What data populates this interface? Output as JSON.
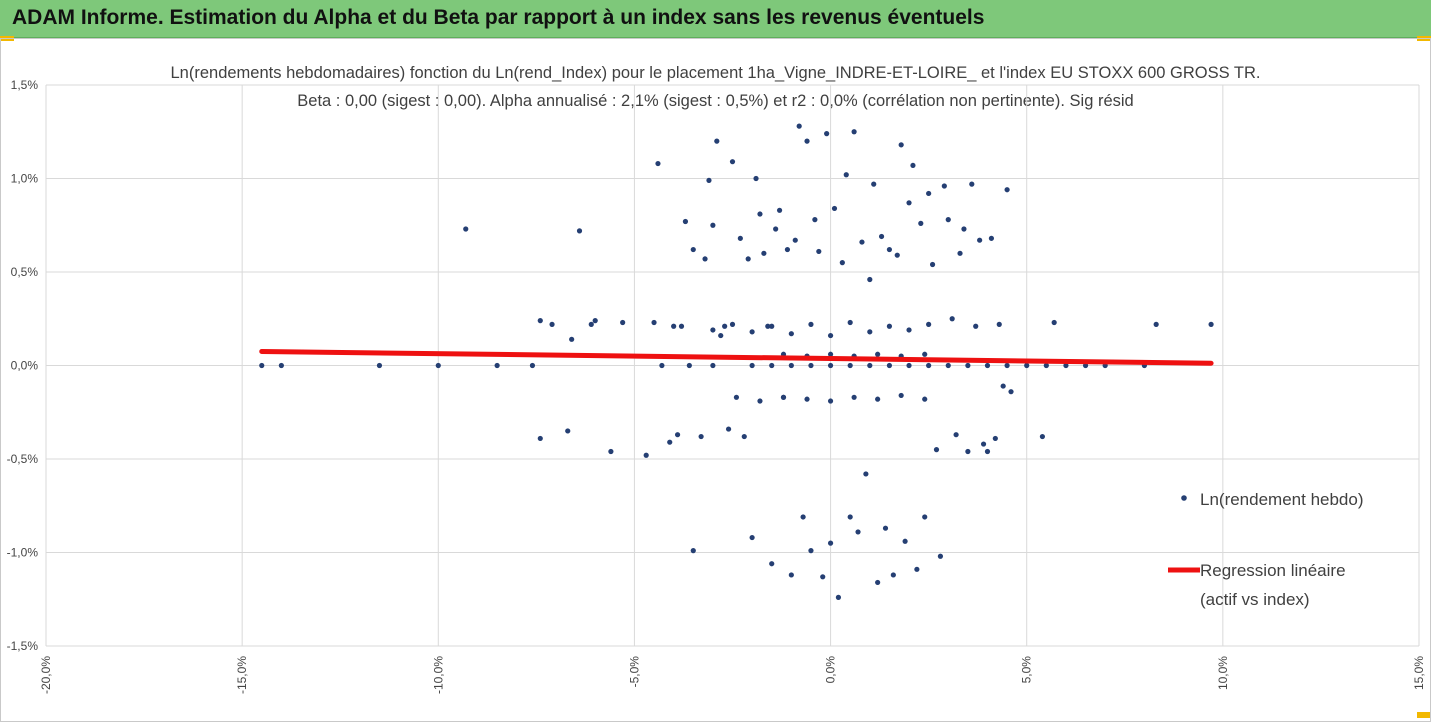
{
  "banner": {
    "title": "ADAM Informe. Estimation du Alpha et du Beta par rapport à un index sans les revenus éventuels"
  },
  "colors": {
    "banner": "#7ec87a",
    "accent_marks": "#f2b800",
    "points": "#253f73",
    "regression": "#ee1111",
    "grid": "#d9d9d9"
  },
  "chart_data": {
    "type": "scatter",
    "title": "Ln(rendements hebdomadaires) fonction du Ln(rend_Index) pour le placement 1ha_Vigne_INDRE-ET-LOIRE_ et l'index EU STOXX 600 GROSS TR.",
    "subtitle": "Beta : 0,00 (sigest : 0,00). Alpha annualisé : 2,1% (sigest : 0,5%) et r2 : 0,0% (corrélation non pertinente). Sig résid",
    "xlim": [
      -0.2,
      0.15
    ],
    "ylim": [
      -0.015,
      0.015
    ],
    "x_ticks": [
      -0.2,
      -0.15,
      -0.1,
      -0.05,
      0,
      0.05,
      0.1,
      0.15
    ],
    "x_tick_labels": [
      "-20,0%",
      "-15,0%",
      "-10,0%",
      "-5,0%",
      "0,0%",
      "5,0%",
      "10,0%",
      "15,0%"
    ],
    "y_ticks": [
      0.015,
      0.01,
      0.005,
      0,
      -0.005,
      -0.01,
      -0.015
    ],
    "y_tick_labels": [
      "1,5%",
      "1,0%",
      "0,5%",
      "0,0%",
      "-0,5%",
      "-1,0%",
      "-1,5%"
    ],
    "grid": true,
    "legend_position": "right",
    "series": [
      {
        "name": "Ln(rendement hebdo)",
        "type": "scatter",
        "color": "#253f73",
        "points": [
          [
            -0.145,
            0.0
          ],
          [
            -0.14,
            0.0
          ],
          [
            -0.115,
            0.0
          ],
          [
            -0.1,
            0.0
          ],
          [
            -0.093,
            0.0073
          ],
          [
            -0.085,
            0.0
          ],
          [
            -0.076,
            0.0
          ],
          [
            -0.074,
            0.0024
          ],
          [
            -0.074,
            -0.0039
          ],
          [
            -0.071,
            0.0022
          ],
          [
            -0.067,
            -0.0035
          ],
          [
            -0.066,
            0.0014
          ],
          [
            -0.064,
            0.0072
          ],
          [
            -0.061,
            0.0022
          ],
          [
            -0.06,
            0.0024
          ],
          [
            -0.056,
            -0.0046
          ],
          [
            -0.053,
            0.0023
          ],
          [
            -0.047,
            -0.0048
          ],
          [
            -0.045,
            0.0023
          ],
          [
            -0.044,
            0.0108
          ],
          [
            -0.043,
            0.0
          ],
          [
            -0.041,
            -0.0041
          ],
          [
            -0.04,
            0.0021
          ],
          [
            -0.039,
            -0.0037
          ],
          [
            -0.038,
            0.0021
          ],
          [
            -0.037,
            0.0077
          ],
          [
            -0.036,
            0.0
          ],
          [
            -0.035,
            -0.0099
          ],
          [
            -0.035,
            0.0062
          ],
          [
            -0.033,
            -0.0038
          ],
          [
            -0.032,
            0.0057
          ],
          [
            -0.031,
            0.0099
          ],
          [
            -0.03,
            0.0075
          ],
          [
            -0.029,
            0.012
          ],
          [
            -0.028,
            0.0016
          ],
          [
            -0.027,
            0.0021
          ],
          [
            -0.026,
            -0.0034
          ],
          [
            -0.025,
            0.0109
          ],
          [
            -0.024,
            -0.0017
          ],
          [
            -0.023,
            0.0068
          ],
          [
            -0.022,
            -0.0038
          ],
          [
            -0.021,
            0.0057
          ],
          [
            -0.02,
            -0.0092
          ],
          [
            -0.019,
            0.01
          ],
          [
            -0.018,
            0.0081
          ],
          [
            -0.017,
            0.006
          ],
          [
            -0.016,
            0.0021
          ],
          [
            -0.015,
            -0.0106
          ],
          [
            -0.014,
            0.0073
          ],
          [
            -0.013,
            0.0083
          ],
          [
            -0.012,
            -0.0017
          ],
          [
            -0.011,
            0.0062
          ],
          [
            -0.01,
            -0.0112
          ],
          [
            -0.009,
            0.0067
          ],
          [
            -0.008,
            0.0128
          ],
          [
            -0.007,
            -0.0081
          ],
          [
            -0.006,
            0.012
          ],
          [
            -0.005,
            -0.0099
          ],
          [
            -0.004,
            0.0078
          ],
          [
            -0.003,
            0.0061
          ],
          [
            -0.002,
            -0.0113
          ],
          [
            -0.001,
            0.0124
          ],
          [
            0.0,
            -0.0095
          ],
          [
            0.001,
            0.0084
          ],
          [
            0.002,
            -0.0124
          ],
          [
            0.003,
            0.0055
          ],
          [
            0.004,
            0.0102
          ],
          [
            0.005,
            -0.0081
          ],
          [
            0.006,
            0.0125
          ],
          [
            0.007,
            -0.0089
          ],
          [
            0.008,
            0.0066
          ],
          [
            0.009,
            -0.0058
          ],
          [
            0.01,
            0.0046
          ],
          [
            0.011,
            0.0097
          ],
          [
            0.012,
            -0.0116
          ],
          [
            0.013,
            0.0069
          ],
          [
            0.014,
            -0.0087
          ],
          [
            0.015,
            0.0062
          ],
          [
            0.016,
            -0.0112
          ],
          [
            0.017,
            0.0059
          ],
          [
            0.018,
            0.0118
          ],
          [
            0.019,
            -0.0094
          ],
          [
            0.02,
            0.0087
          ],
          [
            0.021,
            0.0107
          ],
          [
            0.022,
            -0.0109
          ],
          [
            0.023,
            0.0076
          ],
          [
            0.024,
            -0.0081
          ],
          [
            0.025,
            0.0092
          ],
          [
            0.026,
            0.0054
          ],
          [
            0.027,
            -0.0045
          ],
          [
            0.028,
            -0.0102
          ],
          [
            0.029,
            0.0096
          ],
          [
            0.03,
            0.0078
          ],
          [
            0.031,
            0.0025
          ],
          [
            0.032,
            -0.0037
          ],
          [
            0.033,
            0.006
          ],
          [
            0.034,
            0.0073
          ],
          [
            0.035,
            -0.0046
          ],
          [
            0.036,
            0.0097
          ],
          [
            0.037,
            0.0021
          ],
          [
            0.038,
            0.0067
          ],
          [
            0.039,
            -0.0042
          ],
          [
            0.04,
            -0.0046
          ],
          [
            0.041,
            0.0068
          ],
          [
            0.042,
            -0.0039
          ],
          [
            0.043,
            0.0022
          ],
          [
            0.044,
            -0.0011
          ],
          [
            0.045,
            0.0094
          ],
          [
            0.046,
            -0.0014
          ],
          [
            0.054,
            -0.0038
          ],
          [
            0.057,
            0.0023
          ],
          [
            0.065,
            0.0
          ],
          [
            0.07,
            0.0
          ],
          [
            0.08,
            0.0
          ],
          [
            0.083,
            0.0022
          ],
          [
            0.097,
            0.0022
          ],
          [
            -0.03,
            0.0
          ],
          [
            -0.02,
            0.0
          ],
          [
            -0.015,
            0.0
          ],
          [
            -0.01,
            0.0
          ],
          [
            -0.005,
            0.0
          ],
          [
            0.0,
            0.0
          ],
          [
            0.005,
            0.0
          ],
          [
            0.01,
            0.0
          ],
          [
            0.015,
            0.0
          ],
          [
            0.02,
            0.0
          ],
          [
            0.025,
            0.0
          ],
          [
            0.03,
            0.0
          ],
          [
            0.035,
            0.0
          ],
          [
            0.04,
            0.0
          ],
          [
            0.045,
            0.0
          ],
          [
            0.05,
            0.0
          ],
          [
            0.055,
            0.0
          ],
          [
            0.06,
            0.0
          ],
          [
            -0.03,
            0.0019
          ],
          [
            -0.025,
            0.0022
          ],
          [
            -0.02,
            0.0018
          ],
          [
            -0.015,
            0.0021
          ],
          [
            -0.01,
            0.0017
          ],
          [
            -0.005,
            0.0022
          ],
          [
            0.0,
            0.0016
          ],
          [
            0.005,
            0.0023
          ],
          [
            0.01,
            0.0018
          ],
          [
            0.015,
            0.0021
          ],
          [
            0.02,
            0.0019
          ],
          [
            0.025,
            0.0022
          ],
          [
            -0.018,
            -0.0019
          ],
          [
            -0.012,
            -0.0017
          ],
          [
            -0.006,
            -0.0018
          ],
          [
            0.0,
            -0.0019
          ],
          [
            0.006,
            -0.0017
          ],
          [
            0.012,
            -0.0018
          ],
          [
            0.018,
            -0.0016
          ],
          [
            0.024,
            -0.0018
          ],
          [
            -0.012,
            0.0006
          ],
          [
            -0.006,
            0.0005
          ],
          [
            0.0,
            0.0006
          ],
          [
            0.006,
            0.0005
          ],
          [
            0.012,
            0.0006
          ],
          [
            0.018,
            0.0005
          ],
          [
            0.024,
            0.0006
          ]
        ]
      },
      {
        "name": "Regression linéaire (actif vs index)",
        "type": "line",
        "color": "#ee1111",
        "points": [
          [
            -0.145,
            0.00075
          ],
          [
            0.097,
            0.00012
          ]
        ]
      }
    ],
    "legend": [
      {
        "lines": [
          "Ln(rendement hebdo)"
        ],
        "marker": "dot"
      },
      {
        "lines": [
          "Regression linéaire",
          "(actif vs index)"
        ],
        "marker": "line"
      }
    ]
  }
}
